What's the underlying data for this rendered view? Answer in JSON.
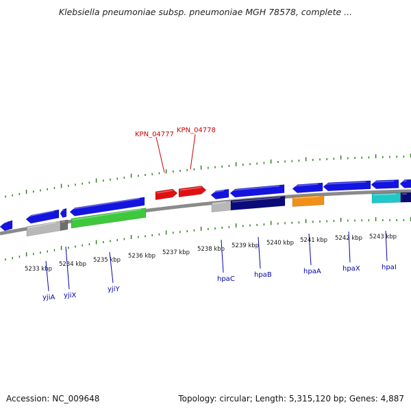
{
  "title": "Klebsiella pneumoniae subsp. pneumoniae MGH 78578, complete ...",
  "footer": {
    "accession": "Accession: NC_009648",
    "topology": "Topology: circular; Length: 5,315,120 bp; Genes: 4,887"
  },
  "scale_labels": [
    "5233 kbp",
    "5234 kbp",
    "5235 kbp",
    "5236 kbp",
    "5237 kbp",
    "5238 kbp",
    "5239 kbp",
    "5240 kbp",
    "5241 kbp",
    "5242 kbp",
    "5243 kbp"
  ],
  "genes_lower": [
    "yjiA",
    "yjiX",
    "yjiY",
    "hpaC",
    "hpaB",
    "hpaA",
    "hpaX",
    "hpaI"
  ],
  "genes_upper": [
    "KPN_04777",
    "KPN_04778"
  ],
  "colors": {
    "backbone": "#8a8a8a",
    "tick": "#2e7d1e",
    "gene_blue": "#1414e0",
    "gene_navy": "#0a0a78",
    "gene_red": "#e01010",
    "gene_green": "#3ec83e",
    "gene_gray": "#b8b8b8",
    "gene_orange": "#f09018",
    "gene_cyan": "#20c8c8",
    "label_blue": "#0000aa",
    "label_red": "#cc0000"
  }
}
